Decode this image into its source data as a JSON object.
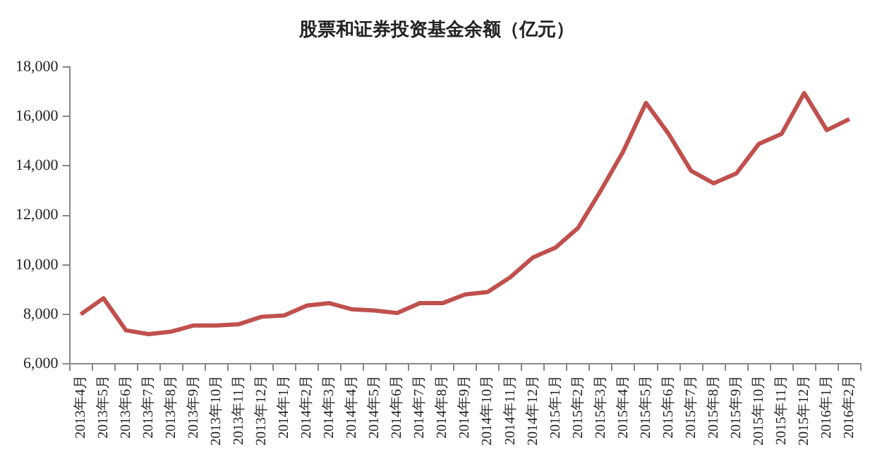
{
  "chart_data": {
    "type": "line",
    "title": "股票和证券投资基金余额（亿元）",
    "categories": [
      "2013年4月",
      "2013年5月",
      "2013年6月",
      "2013年7月",
      "2013年8月",
      "2013年9月",
      "2013年10月",
      "2013年11月",
      "2013年12月",
      "2014年1月",
      "2014年2月",
      "2014年3月",
      "2014年4月",
      "2014年5月",
      "2014年6月",
      "2014年7月",
      "2014年8月",
      "2014年9月",
      "2014年10月",
      "2014年11月",
      "2014年12月",
      "2015年1月",
      "2015年2月",
      "2015年3月",
      "2015年4月",
      "2015年5月",
      "2015年6月",
      "2015年7月",
      "2015年8月",
      "2015年9月",
      "2015年10月",
      "2015年11月",
      "2015年12月",
      "2016年1月",
      "2016年2月"
    ],
    "series": [
      {
        "color": "#c0504d",
        "values": [
          8000,
          8650,
          7350,
          7200,
          7300,
          7550,
          7550,
          7600,
          7900,
          7950,
          8350,
          8450,
          8200,
          8150,
          8050,
          8450,
          8450,
          8800,
          8900,
          9500,
          10300,
          10700,
          11500,
          13000,
          14600,
          16550,
          15300,
          13800,
          13300,
          13700,
          14900,
          15300,
          16950,
          15450,
          15900
        ]
      }
    ],
    "ylim": [
      6000,
      18000
    ],
    "yticks": [
      {
        "value": 6000,
        "label": "6,000"
      },
      {
        "value": 8000,
        "label": "8,000"
      },
      {
        "value": 10000,
        "label": "10,000"
      },
      {
        "value": 12000,
        "label": "12,000"
      },
      {
        "value": 14000,
        "label": "14,000"
      },
      {
        "value": 16000,
        "label": "16,000"
      },
      {
        "value": 18000,
        "label": "18,000"
      }
    ],
    "grid": false,
    "marker": "none",
    "line_style": "solid"
  }
}
